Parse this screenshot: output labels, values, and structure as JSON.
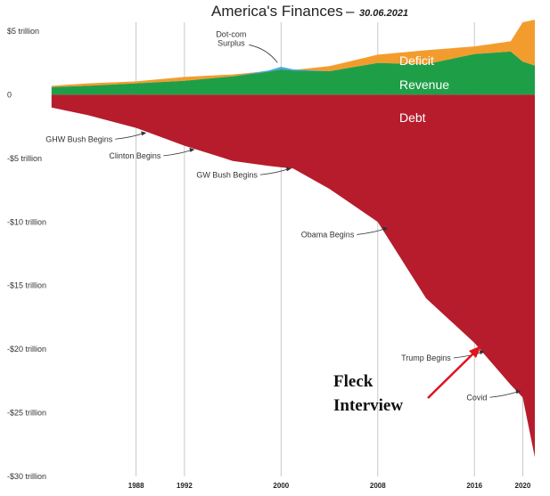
{
  "title": "America's Finances",
  "title_separator": "–",
  "date": "30.06.2021",
  "chart_data": {
    "type": "area",
    "x": [
      1981,
      1984,
      1988,
      1992,
      1996,
      1999,
      2000,
      2001,
      2004,
      2008,
      2012,
      2016,
      2019,
      2020,
      2021
    ],
    "series": [
      {
        "name": "Revenue",
        "color": "#1f9e48",
        "values": [
          0.6,
          0.7,
          0.9,
          1.1,
          1.45,
          1.82,
          2.0,
          1.9,
          1.85,
          2.5,
          2.4,
          3.2,
          3.4,
          2.6,
          2.3
        ]
      },
      {
        "name": "Deficit",
        "color": "#f39c2e",
        "values": [
          0.1,
          0.2,
          0.15,
          0.3,
          0.15,
          0.05,
          0.0,
          0.05,
          0.4,
          0.65,
          1.1,
          0.6,
          0.8,
          3.1,
          3.6
        ]
      },
      {
        "name": "Dot-com Surplus",
        "color": "#4aa8e0",
        "values": [
          0,
          0,
          0,
          0,
          0,
          0.1,
          0.2,
          0.1,
          0,
          0,
          0,
          0,
          0,
          0,
          0
        ]
      },
      {
        "name": "Debt",
        "color": "#b71c2c",
        "values": [
          -1.0,
          -1.6,
          -2.6,
          -4.0,
          -5.2,
          -5.6,
          -5.7,
          -5.8,
          -7.4,
          -10.0,
          -16.0,
          -19.5,
          -22.8,
          -23.8,
          -28.5
        ]
      }
    ],
    "yticks": [
      5,
      0,
      -5,
      -10,
      -15,
      -20,
      -25,
      -30
    ],
    "ytick_labels": [
      "$5 trillion",
      "0",
      "-$5 trillion",
      "-$10 trillion",
      "-$15 trillion",
      "-$20 trillion",
      "-$25 trillion",
      "-$30 trillion"
    ],
    "ylim": [
      -30,
      5
    ],
    "xlim": [
      1980.5,
      2021
    ],
    "xticks": [
      1988,
      1992,
      2000,
      2008,
      2016,
      2020
    ],
    "xtick_labels": [
      "1988",
      "1992",
      "2000",
      "2008",
      "2016",
      "2020"
    ],
    "grid": "vertical",
    "series_labels": [
      "Deficit",
      "Revenue",
      "Debt"
    ],
    "annotations": [
      {
        "text": "GHW Bush Begins",
        "x": 1989,
        "y": -3.0
      },
      {
        "text": "Clinton Begins",
        "x": 1993,
        "y": -4.3
      },
      {
        "text": "GW Bush Begins",
        "x": 2001,
        "y": -5.8
      },
      {
        "text": "Obama Begins",
        "x": 2009,
        "y": -10.5
      },
      {
        "text": "Trump Begins",
        "x": 2017,
        "y": -20.2
      },
      {
        "text": "Covid",
        "x": 2020,
        "y": -23.3
      },
      {
        "text": "Dot-com Surplus",
        "x": 2000,
        "y": 2.1
      }
    ],
    "overlay_text": [
      "Fleck",
      "Interview"
    ],
    "overlay_arrow_color": "#e0141c"
  }
}
